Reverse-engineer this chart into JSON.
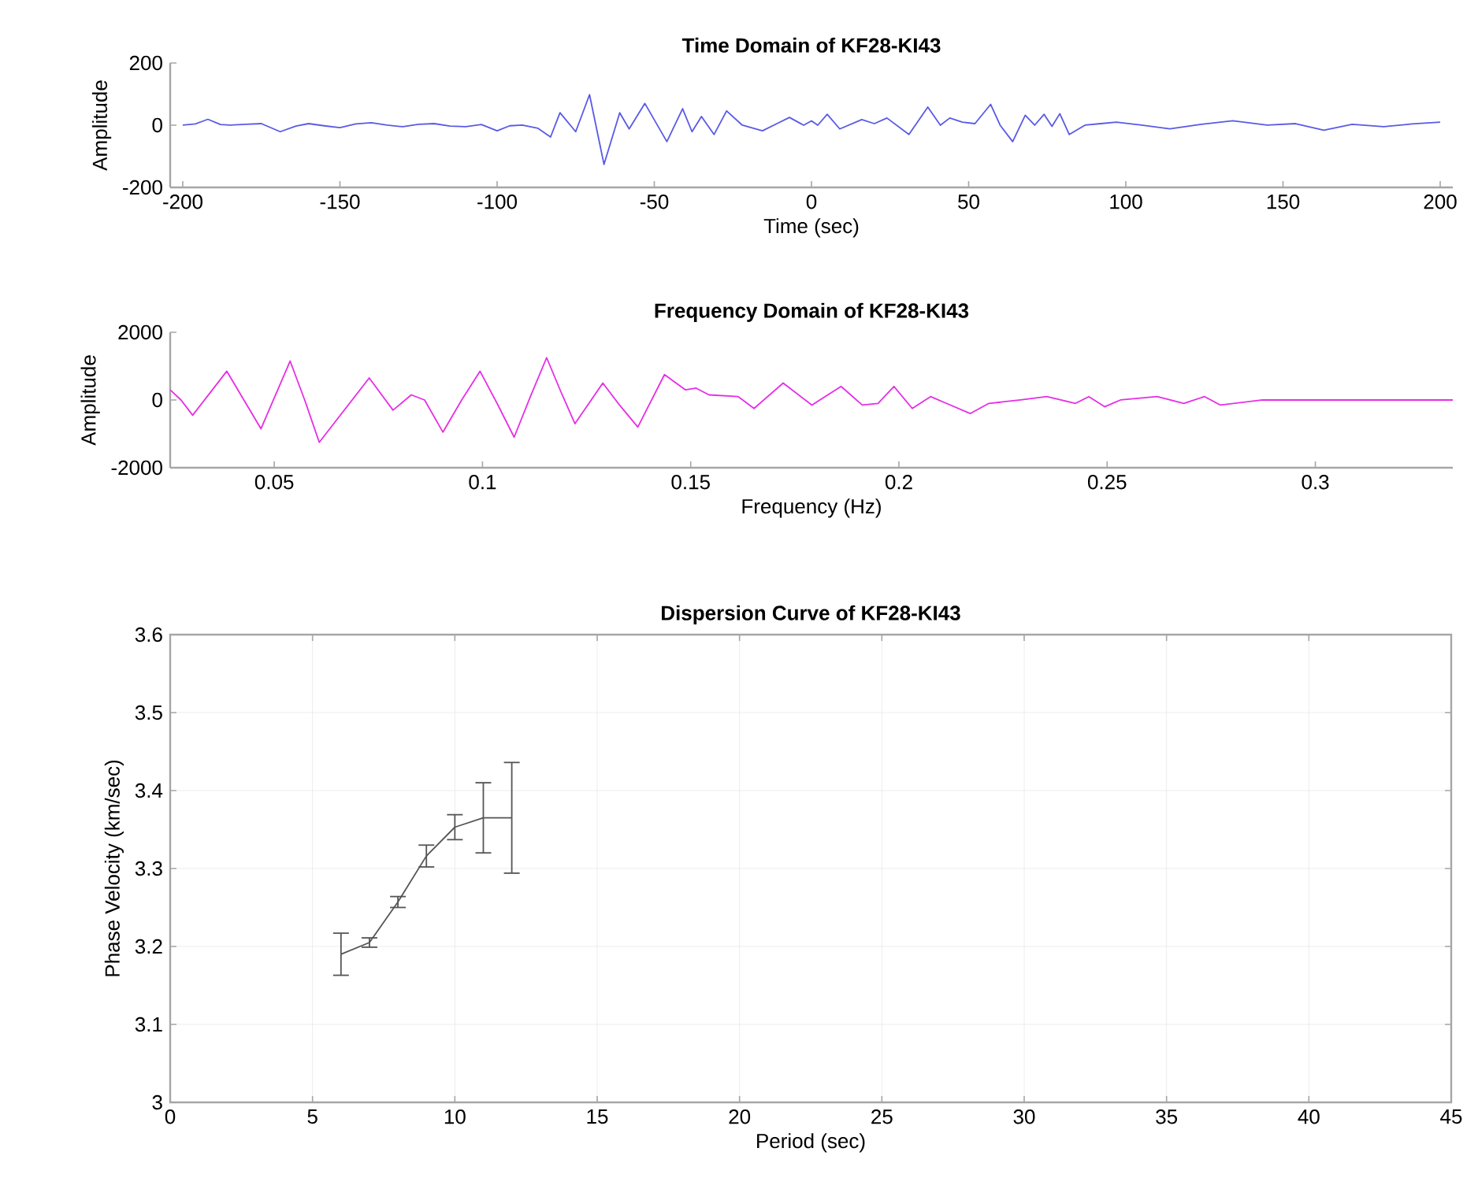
{
  "chart_data": [
    {
      "type": "line",
      "title": "Time Domain of KF28-KI43",
      "xlabel": "Time (sec)",
      "ylabel": "Amplitude",
      "color": "#5a5ae6",
      "xlim": [
        -204,
        204
      ],
      "ylim": [
        -200,
        200
      ],
      "xticks": [
        -200,
        -150,
        -100,
        -50,
        0,
        50,
        100,
        150,
        200
      ],
      "yticks": [
        -200,
        0,
        200
      ],
      "x": [
        -200,
        -196,
        -192,
        -188,
        -185,
        -180,
        -175,
        -169,
        -164,
        -160,
        -155,
        -150,
        -145,
        -140,
        -135,
        -130,
        -125,
        -120,
        -115,
        -110,
        -105,
        -100,
        -96,
        -92,
        -87,
        -83,
        -80,
        -75,
        -70.6,
        -66,
        -61,
        -58,
        -53,
        -46,
        -41,
        -38,
        -35,
        -31,
        -27,
        -22,
        -15.6,
        -11,
        -7,
        -2.5,
        0,
        2,
        5,
        9,
        16,
        20,
        24,
        31,
        37,
        41,
        44,
        48,
        52,
        57,
        60,
        64,
        68,
        71,
        74,
        76.5,
        79,
        82,
        87,
        92,
        97,
        105,
        114,
        124,
        134,
        145,
        154,
        163,
        172,
        182,
        191,
        200
      ],
      "values": [
        0,
        4,
        19,
        2,
        0,
        3,
        5,
        -21,
        -3,
        5,
        -2,
        -8,
        4,
        8,
        0,
        -5,
        3,
        5,
        -3,
        -5,
        2,
        -18,
        -2,
        0,
        -10,
        -38,
        40,
        -21,
        98,
        -126,
        40,
        -12,
        70,
        -53,
        53,
        -21,
        28,
        -30,
        46,
        0,
        -18,
        5,
        25,
        0,
        14,
        0,
        35,
        -12,
        18,
        5,
        23,
        -30,
        58,
        0,
        23,
        10,
        5,
        67,
        0,
        -53,
        32,
        0,
        35,
        -4,
        37,
        -30,
        0,
        5,
        10,
        0,
        -12,
        3,
        14,
        0,
        5,
        -16,
        3,
        -5,
        4,
        10
      ]
    },
    {
      "type": "line",
      "title": "Frequency Domain of KF28-KI43",
      "xlabel": "Frequency (Hz)",
      "ylabel": "Amplitude",
      "color": "#e62ee6",
      "xlim": [
        0.025,
        0.333
      ],
      "ylim": [
        -2000,
        2000
      ],
      "xticks": [
        0.05,
        0.1,
        0.15,
        0.2,
        0.25,
        0.3
      ],
      "yticks": [
        -2000,
        0,
        2000
      ],
      "x": [
        0.025,
        0.0276,
        0.0304,
        0.0345,
        0.0386,
        0.0427,
        0.0468,
        0.0503,
        0.0538,
        0.0573,
        0.0608,
        0.0668,
        0.0728,
        0.0785,
        0.0829,
        0.0861,
        0.0905,
        0.095,
        0.0994,
        0.1035,
        0.1076,
        0.1115,
        0.1154,
        0.1188,
        0.1222,
        0.1289,
        0.1329,
        0.1373,
        0.1437,
        0.1487,
        0.1513,
        0.1544,
        0.1614,
        0.1652,
        0.1722,
        0.1791,
        0.1861,
        0.1912,
        0.195,
        0.1988,
        0.2032,
        0.2076,
        0.2114,
        0.2171,
        0.2216,
        0.2292,
        0.2355,
        0.2424,
        0.2456,
        0.2494,
        0.2532,
        0.262,
        0.2684,
        0.2734,
        0.2772,
        0.2873,
        0.3,
        0.3128,
        0.333
      ],
      "values": [
        300,
        0,
        -450,
        200,
        850,
        0,
        -850,
        150,
        1150,
        0,
        -1250,
        -300,
        650,
        -300,
        150,
        0,
        -950,
        0,
        850,
        -100,
        -1100,
        100,
        1250,
        250,
        -700,
        500,
        -150,
        -800,
        750,
        300,
        350,
        150,
        100,
        -250,
        500,
        -150,
        400,
        -150,
        -100,
        400,
        -250,
        100,
        -100,
        -400,
        -100,
        0,
        100,
        -100,
        100,
        -200,
        0,
        100,
        -100,
        100,
        -150,
        0,
        0,
        0,
        0
      ]
    },
    {
      "type": "line",
      "title": "Dispersion Curve of KF28-KI43",
      "xlabel": "Period (sec)",
      "ylabel": "Phase Velocity (km/sec)",
      "color": "#555555",
      "xlim": [
        0,
        45
      ],
      "ylim": [
        3,
        3.6
      ],
      "xticks": [
        0,
        5,
        10,
        15,
        20,
        25,
        30,
        35,
        40,
        45
      ],
      "yticks": [
        3,
        3.1,
        3.2,
        3.3,
        3.4,
        3.5,
        3.6
      ],
      "grid": true,
      "x": [
        6,
        7,
        8,
        9,
        10,
        11,
        12
      ],
      "values": [
        3.19,
        3.205,
        3.257,
        3.316,
        3.353,
        3.365,
        3.365
      ],
      "errors": [
        0.027,
        0.006,
        0.007,
        0.014,
        0.016,
        0.045,
        0.071
      ]
    }
  ]
}
